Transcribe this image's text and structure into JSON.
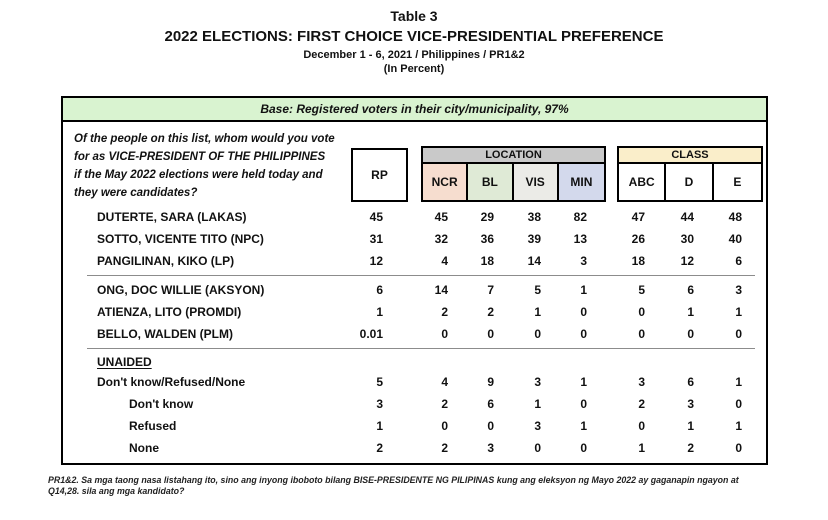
{
  "page_header": {
    "table_label": "Table 3",
    "title": "2022 ELECTIONS: FIRST CHOICE VICE-PRESIDENTIAL PREFERENCE",
    "subtitle": "December 1 - 6, 2021 / Philippines / PR1&2",
    "unit_note": "(In Percent)"
  },
  "base_bar": "Base: Registered voters in their city/municipality, 97%",
  "question_lines": [
    "Of the people on this list, whom would you vote",
    "for as VICE-PRESIDENT OF THE PHILIPPINES",
    "if the May 2022 elections were held today and",
    "they were candidates?"
  ],
  "columns": {
    "rp_label": "RP",
    "location_label": "LOCATION",
    "location_cols": [
      "NCR",
      "BL",
      "VIS",
      "MIN"
    ],
    "class_label": "CLASS",
    "class_cols": [
      "ABC",
      "D",
      "E"
    ]
  },
  "colors": {
    "base_bar_bg": "#d9f3d0",
    "location_header_bg": "#c9c9c9",
    "ncr_bg": "#f6ddcf",
    "bl_bg": "#dfead6",
    "vis_bg": "#ebebe7",
    "min_bg": "#d3d9ec",
    "class_header_bg": "#faeeca"
  },
  "chart_data": {
    "type": "table",
    "title": "2022 ELECTIONS: FIRST CHOICE VICE-PRESIDENTIAL PREFERENCE",
    "columns": [
      "RP",
      "NCR",
      "BL",
      "VIS",
      "MIN",
      "ABC",
      "D",
      "E"
    ],
    "groups": [
      {
        "rows": [
          {
            "label": "DUTERTE, SARA (LAKAS)",
            "values": [
              "45",
              "45",
              "29",
              "38",
              "82",
              "47",
              "44",
              "48"
            ]
          },
          {
            "label": "SOTTO, VICENTE TITO (NPC)",
            "values": [
              "31",
              "32",
              "36",
              "39",
              "13",
              "26",
              "30",
              "40"
            ]
          },
          {
            "label": "PANGILINAN, KIKO (LP)",
            "values": [
              "12",
              "4",
              "18",
              "14",
              "3",
              "18",
              "12",
              "6"
            ]
          }
        ]
      },
      {
        "rows": [
          {
            "label": "ONG, DOC WILLIE (AKSYON)",
            "values": [
              "6",
              "14",
              "7",
              "5",
              "1",
              "5",
              "6",
              "3"
            ]
          },
          {
            "label": "ATIENZA, LITO (PROMDI)",
            "values": [
              "1",
              "2",
              "2",
              "1",
              "0",
              "0",
              "1",
              "1"
            ]
          },
          {
            "label": "BELLO, WALDEN (PLM)",
            "values": [
              "0.01",
              "0",
              "0",
              "0",
              "0",
              "0",
              "0",
              "0"
            ]
          }
        ]
      },
      {
        "section_label": "UNAIDED",
        "rows": [
          {
            "label": "Don't know/Refused/None",
            "values": [
              "5",
              "4",
              "9",
              "3",
              "1",
              "3",
              "6",
              "1"
            ]
          },
          {
            "label": "Don't know",
            "indent": true,
            "values": [
              "3",
              "2",
              "6",
              "1",
              "0",
              "2",
              "3",
              "0"
            ]
          },
          {
            "label": "Refused",
            "indent": true,
            "values": [
              "1",
              "0",
              "0",
              "3",
              "1",
              "0",
              "1",
              "1"
            ]
          },
          {
            "label": "None",
            "indent": true,
            "values": [
              "2",
              "2",
              "3",
              "0",
              "0",
              "1",
              "2",
              "0"
            ]
          }
        ]
      }
    ]
  },
  "footnote": {
    "line1": "PR1&2.  Sa mga taong nasa listahang ito, sino ang inyong iboboto bilang BISE-PRESIDENTE NG PILIPINAS  kung ang eleksyon ng Mayo 2022  ay gaganapin ngayon at",
    "line2": "Q14,28.  sila ang mga kandidato?"
  }
}
